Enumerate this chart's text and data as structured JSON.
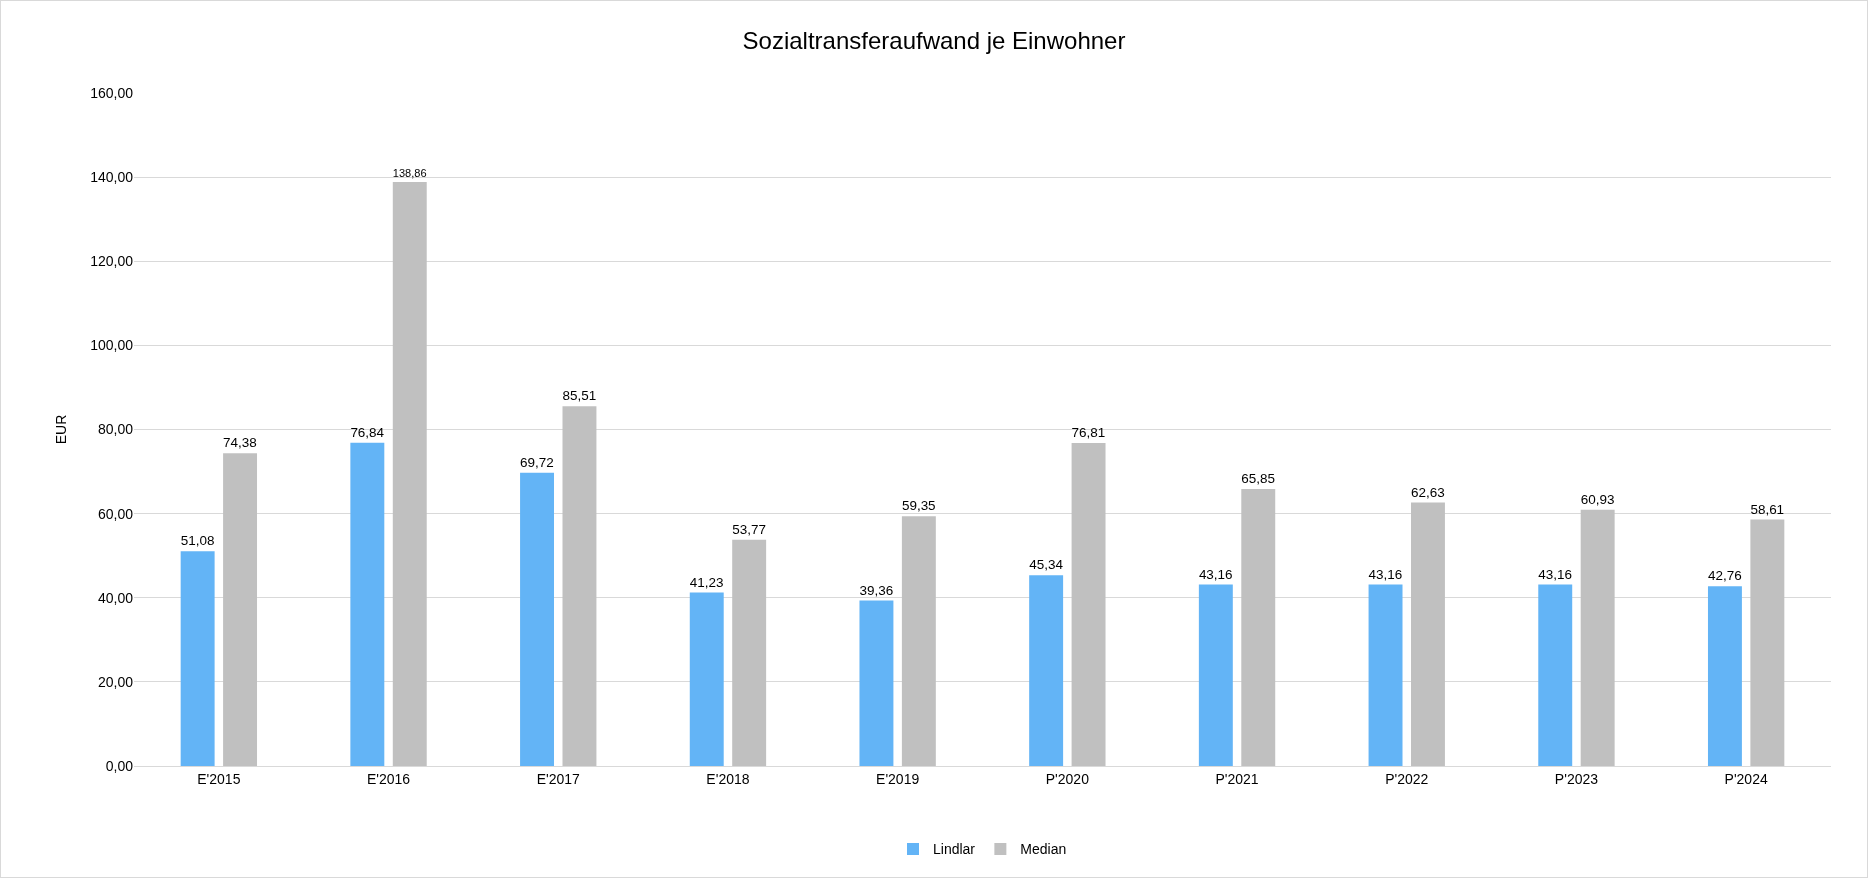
{
  "chart_data": {
    "type": "bar",
    "title": "Sozialtransferaufwand je Einwohner",
    "ylabel": "EUR",
    "categories": [
      "E'2015",
      "E'2016",
      "E'2017",
      "E'2018",
      "E'2019",
      "P'2020",
      "P'2021",
      "P'2022",
      "P'2023",
      "P'2024"
    ],
    "series": [
      {
        "name": "Lindlar",
        "color": "#63b4f6",
        "values": [
          51.08,
          76.84,
          69.72,
          41.23,
          39.36,
          45.34,
          43.16,
          43.16,
          43.16,
          42.76
        ],
        "value_labels": [
          "51,08",
          "76,84",
          "69,72",
          "41,23",
          "39,36",
          "45,34",
          "43,16",
          "43,16",
          "43,16",
          "42,76"
        ]
      },
      {
        "name": "Median",
        "color": "#c0c0c0",
        "values": [
          74.38,
          138.86,
          85.51,
          53.77,
          59.35,
          76.81,
          65.85,
          62.63,
          60.93,
          58.61
        ],
        "value_labels": [
          "74,38",
          "138,86",
          "85,51",
          "53,77",
          "59,35",
          "76,81",
          "65,85",
          "62,63",
          "60,93",
          "58,61"
        ]
      }
    ],
    "ylim": [
      0,
      160
    ],
    "yticks": [
      {
        "value": 0,
        "label": "0,00"
      },
      {
        "value": 20,
        "label": "20,00"
      },
      {
        "value": 40,
        "label": "40,00"
      },
      {
        "value": 60,
        "label": "60,00"
      },
      {
        "value": 80,
        "label": "80,00"
      },
      {
        "value": 100,
        "label": "100,00"
      },
      {
        "value": 120,
        "label": "120,00"
      },
      {
        "value": 140,
        "label": "140,00"
      },
      {
        "value": 160,
        "label": "160,00"
      }
    ],
    "grid": "y",
    "legend": "bottom"
  }
}
